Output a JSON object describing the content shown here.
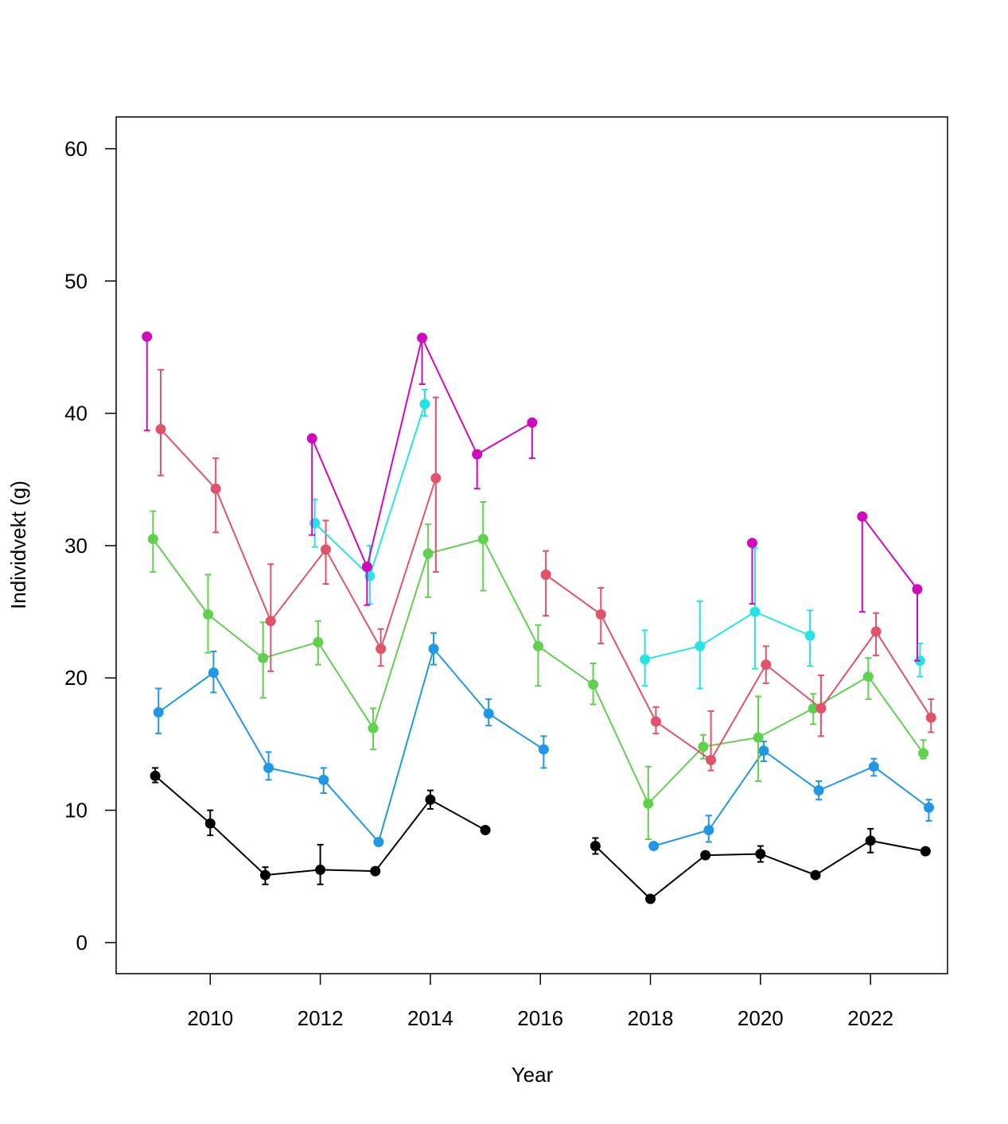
{
  "chart_data": {
    "type": "line",
    "x_label": "Year",
    "y_label": "Individvekt (g)",
    "xlim": [
      2008.29,
      2023.4
    ],
    "ylim": [
      -2.35,
      62.4
    ],
    "xticks": [
      2010,
      2012,
      2014,
      2016,
      2018,
      2020,
      2022
    ],
    "yticks": [
      0,
      10,
      20,
      30,
      40,
      50,
      60
    ],
    "series": [
      {
        "color": "#000000",
        "x": [
          2009,
          2010,
          2011,
          2012,
          2013,
          2014,
          2015,
          2016,
          2017,
          2018,
          2019,
          2020,
          2021,
          2022,
          2023
        ],
        "values": [
          12.6,
          9.0,
          5.1,
          5.5,
          5.4,
          10.8,
          8.5,
          null,
          7.3,
          3.3,
          6.6,
          6.7,
          5.1,
          7.7,
          6.9
        ],
        "lower": [
          12.1,
          8.1,
          4.4,
          4.4,
          null,
          10.1,
          null,
          null,
          6.7,
          null,
          null,
          6.1,
          null,
          6.8,
          null
        ],
        "upper": [
          13.2,
          10.0,
          5.7,
          7.4,
          null,
          11.5,
          null,
          null,
          7.9,
          null,
          null,
          7.3,
          null,
          8.6,
          null
        ]
      },
      {
        "color": "#2297E6",
        "x": [
          2009.06,
          2010.06,
          2011.06,
          2012.06,
          2013.06,
          2014.06,
          2015.06,
          2016.06,
          2017.06,
          2018.06,
          2019.06,
          2020.06,
          2021.06,
          2022.06,
          2023.06
        ],
        "values": [
          17.4,
          20.4,
          13.2,
          12.3,
          7.6,
          22.2,
          17.3,
          14.6,
          null,
          7.3,
          8.5,
          14.5,
          11.5,
          13.3,
          10.2
        ],
        "lower": [
          15.8,
          18.9,
          12.3,
          11.3,
          null,
          21.0,
          16.4,
          13.2,
          null,
          null,
          7.6,
          13.7,
          10.8,
          12.6,
          9.2
        ],
        "upper": [
          19.2,
          22.0,
          14.4,
          13.2,
          null,
          23.4,
          18.4,
          15.6,
          null,
          null,
          9.6,
          15.2,
          12.2,
          13.9,
          10.8
        ]
      },
      {
        "color": "#61D04F",
        "x": [
          2008.96,
          2009.96,
          2010.96,
          2011.96,
          2012.96,
          2013.96,
          2014.96,
          2015.96,
          2016.96,
          2017.96,
          2018.96,
          2019.96,
          2020.96,
          2021.96,
          2022.96
        ],
        "values": [
          30.5,
          24.8,
          21.5,
          22.7,
          16.2,
          29.4,
          30.5,
          22.4,
          19.5,
          10.5,
          14.8,
          15.5,
          17.7,
          20.1,
          14.3
        ],
        "lower": [
          28.0,
          21.9,
          18.5,
          21.0,
          14.6,
          26.1,
          26.6,
          19.4,
          18.0,
          7.8,
          13.9,
          12.2,
          16.5,
          18.4,
          13.9
        ],
        "upper": [
          32.6,
          27.8,
          24.2,
          24.3,
          17.7,
          31.6,
          33.3,
          24.0,
          21.1,
          13.3,
          15.7,
          18.6,
          18.8,
          21.5,
          15.3
        ]
      },
      {
        "color": "#DF536B",
        "x": [
          2009.1,
          2010.1,
          2011.1,
          2012.1,
          2013.1,
          2014.1,
          2015.1,
          2016.1,
          2017.1,
          2018.1,
          2019.1,
          2020.1,
          2021.1,
          2022.1,
          2023.1
        ],
        "values": [
          38.8,
          34.3,
          24.3,
          29.7,
          22.2,
          35.1,
          null,
          27.8,
          24.8,
          16.7,
          13.8,
          21.0,
          17.7,
          23.5,
          17.0
        ],
        "lower": [
          35.3,
          31.0,
          20.5,
          27.1,
          20.9,
          28.0,
          null,
          24.7,
          22.6,
          15.8,
          13.0,
          19.6,
          15.6,
          21.7,
          15.9
        ],
        "upper": [
          43.3,
          36.6,
          28.6,
          31.9,
          23.7,
          41.2,
          null,
          29.6,
          26.8,
          17.8,
          17.5,
          22.4,
          20.2,
          24.9,
          18.4
        ]
      },
      {
        "color": "#28E2E5",
        "x": [
          2008.9,
          2009.9,
          2010.9,
          2011.9,
          2012.9,
          2013.9,
          2014.9,
          2015.9,
          2016.9,
          2017.9,
          2018.9,
          2019.9,
          2020.9,
          2021.9,
          2022.9
        ],
        "values": [
          null,
          null,
          null,
          31.7,
          27.7,
          40.7,
          null,
          null,
          null,
          21.4,
          22.4,
          25.0,
          23.2,
          null,
          21.3
        ],
        "lower": [
          null,
          null,
          null,
          29.9,
          25.6,
          39.8,
          null,
          null,
          null,
          19.4,
          19.2,
          20.7,
          20.9,
          null,
          20.1
        ],
        "upper": [
          null,
          null,
          null,
          33.5,
          30.0,
          41.8,
          null,
          null,
          null,
          23.6,
          25.8,
          29.8,
          25.1,
          null,
          22.6
        ]
      },
      {
        "color": "#CD0BBC",
        "x": [
          2008.85,
          2009.85,
          2010.85,
          2011.85,
          2012.85,
          2013.85,
          2014.85,
          2015.85,
          2016.85,
          2017.85,
          2018.85,
          2019.85,
          2020.85,
          2021.85,
          2022.85
        ],
        "values": [
          45.8,
          null,
          null,
          38.1,
          28.4,
          45.7,
          36.9,
          39.3,
          null,
          null,
          null,
          30.2,
          null,
          32.2,
          26.7
        ],
        "lower": [
          38.7,
          null,
          null,
          30.8,
          25.5,
          42.2,
          34.3,
          36.6,
          null,
          null,
          null,
          25.6,
          null,
          25.0,
          21.3
        ],
        "upper": [
          45.8,
          null,
          null,
          38.1,
          28.4,
          45.7,
          36.9,
          39.3,
          null,
          null,
          null,
          30.2,
          null,
          32.2,
          26.7
        ]
      }
    ]
  }
}
